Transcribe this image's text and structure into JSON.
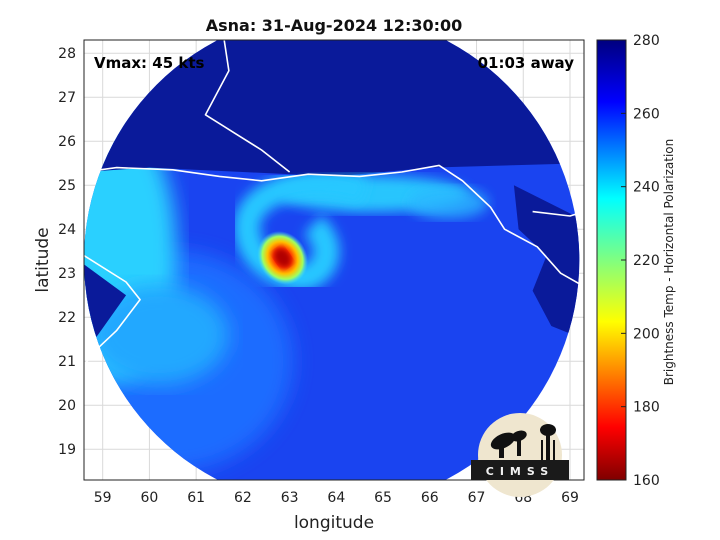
{
  "chart_data": {
    "type": "heatmap",
    "title": "Asna: 31-Aug-2024 12:30:00",
    "xlabel": "longitude",
    "ylabel": "latitude",
    "xlim": [
      58.6,
      69.3
    ],
    "ylim": [
      18.3,
      28.3
    ],
    "xticks": [
      "59",
      "60",
      "61",
      "62",
      "63",
      "64",
      "65",
      "66",
      "67",
      "68",
      "69"
    ],
    "yticks": [
      "19",
      "20",
      "21",
      "22",
      "23",
      "24",
      "25",
      "26",
      "27",
      "28"
    ],
    "grid": true,
    "annotations": {
      "vmax": "Vmax: 45 kts",
      "offset": "01:03 away"
    },
    "colorbar": {
      "label": "Brightness Temp - Horizontal Polarization",
      "range": [
        160,
        280
      ],
      "ticks": [
        "160",
        "180",
        "200",
        "220",
        "240",
        "260",
        "280"
      ],
      "colormap": "jet"
    },
    "swath": {
      "center_lon": 63.9,
      "center_lat": 23.3,
      "radius_deg": 5.3
    },
    "storm_center": {
      "lon": 62.85,
      "lat": 23.35,
      "min_temp": 172
    },
    "logo": "CIMSS"
  }
}
